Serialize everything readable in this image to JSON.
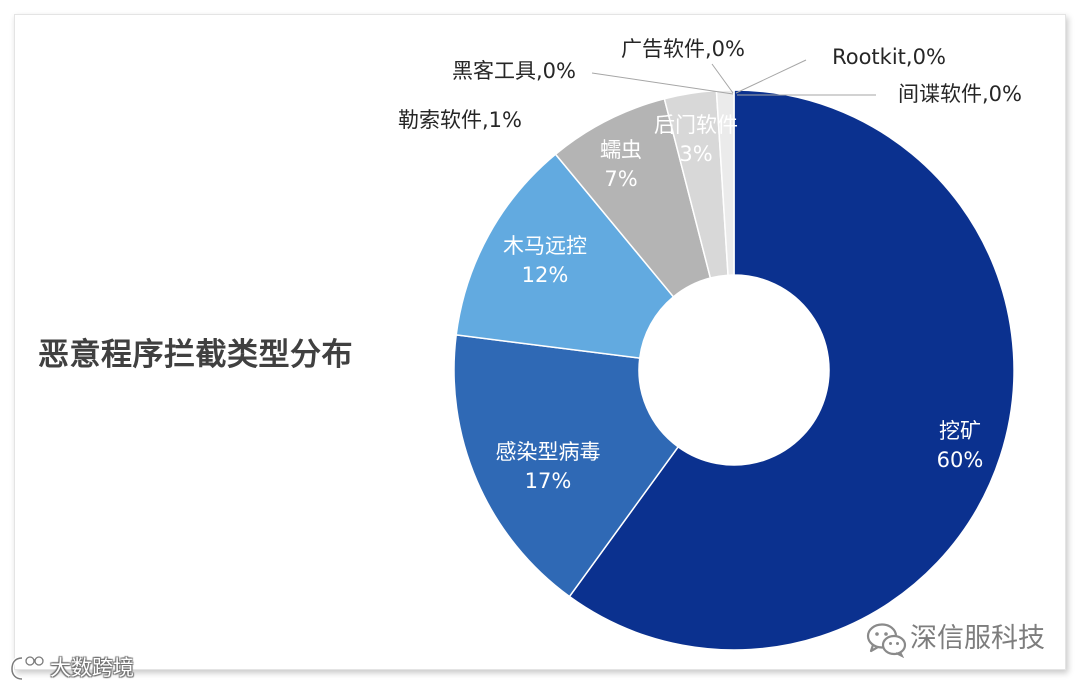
{
  "chart_data": {
    "type": "pie",
    "donut": true,
    "title": "恶意程序拦截类型分布",
    "categories": [
      "挖矿",
      "感染型病毒",
      "木马远控",
      "蠕虫",
      "后门软件",
      "勒索软件",
      "黑客工具",
      "广告软件",
      "Rootkit",
      "间谍软件"
    ],
    "values": [
      60,
      17,
      12,
      7,
      3,
      1,
      0,
      0,
      0,
      0
    ],
    "unit": "%",
    "label_separator": ",",
    "colors": [
      "#0b318f",
      "#2f69b5",
      "#62aae0",
      "#b4b4b4",
      "#d8d8d8",
      "#ebebeb",
      "#f2f2f2",
      "#f2f2f2",
      "#f2f2f2",
      "#f2f2f2"
    ],
    "legend": "none",
    "grid": false
  },
  "watermarks": {
    "right": "深信服科技",
    "left": "大数跨境"
  },
  "icons": {
    "right_watermark": "wechat-icon",
    "left_watermark": "brand-logo-icon"
  }
}
